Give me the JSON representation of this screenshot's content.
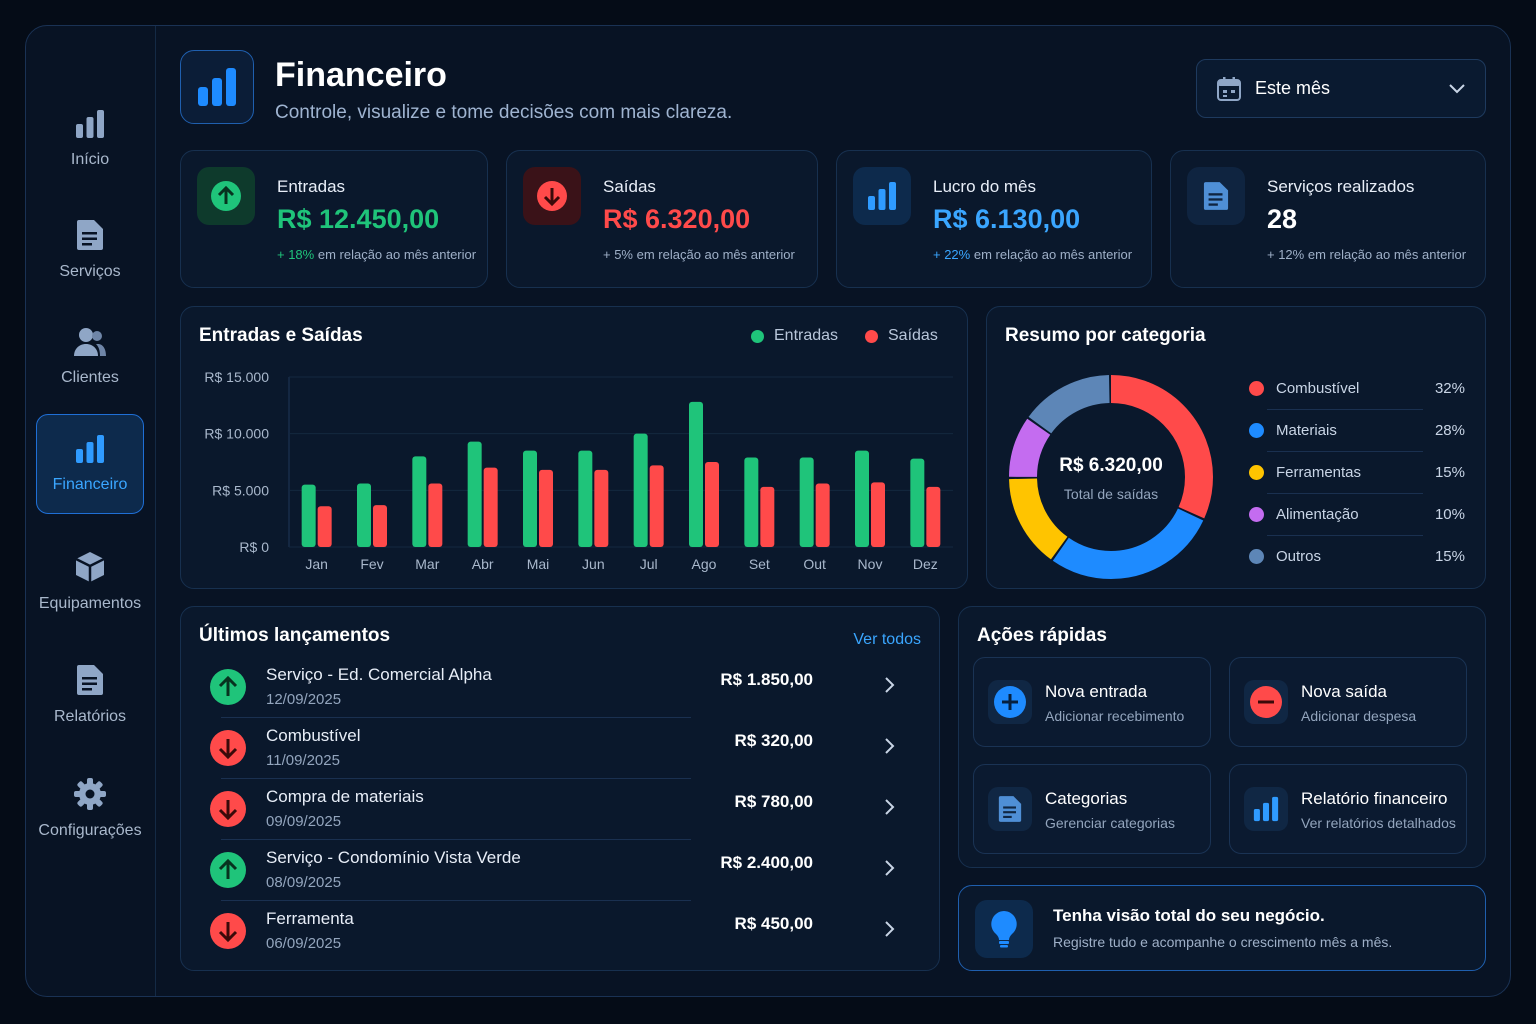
{
  "colors": {
    "accent": "#3aa6ff",
    "green": "#1fc47a",
    "red": "#ff4a4a",
    "yellow": "#ffc400",
    "purple": "#c46cf0",
    "slate": "#5d86b7"
  },
  "sidebar": {
    "items": [
      {
        "label": "Início",
        "icon": "bar-chart-icon",
        "active": false
      },
      {
        "label": "Serviços",
        "icon": "document-icon",
        "active": false
      },
      {
        "label": "Clientes",
        "icon": "users-icon",
        "active": false
      },
      {
        "label": "Financeiro",
        "icon": "bar-chart-icon",
        "active": true
      },
      {
        "label": "Equipamentos",
        "icon": "box-icon",
        "active": false
      },
      {
        "label": "Relatórios",
        "icon": "report-icon",
        "active": false
      },
      {
        "label": "Configurações",
        "icon": "gear-icon",
        "active": false
      }
    ]
  },
  "header": {
    "title": "Financeiro",
    "subtitle": "Controle, visualize e tome decisões com mais clareza.",
    "period": "Este mês"
  },
  "kpis": [
    {
      "label": "Entradas",
      "value": "R$ 12.450,00",
      "delta": "+ 18%",
      "note": " em relação ao mês anterior",
      "icon": "arrow-up-icon"
    },
    {
      "label": "Saídas",
      "value": "R$ 6.320,00",
      "delta": "+ 5%",
      "note": " em relação ao mês anterior",
      "icon": "arrow-down-icon"
    },
    {
      "label": "Lucro do mês",
      "value": "R$ 6.130,00",
      "delta": "+ 22%",
      "note": " em relação ao mês anterior",
      "icon": "bar-chart-icon"
    },
    {
      "label": "Serviços realizados",
      "value": "28",
      "delta": "+ 12%",
      "note": " em relação ao mês anterior",
      "icon": "document-icon"
    }
  ],
  "chart_data": {
    "type": "bar",
    "title": "Entradas e Saídas",
    "categories": [
      "Jan",
      "Fev",
      "Mar",
      "Abr",
      "Mai",
      "Jun",
      "Jul",
      "Ago",
      "Set",
      "Out",
      "Nov",
      "Dez"
    ],
    "series": [
      {
        "name": "Entradas",
        "values": [
          5500,
          5600,
          8000,
          9300,
          8500,
          8500,
          10000,
          12800,
          7900,
          7900,
          8500,
          7800
        ]
      },
      {
        "name": "Saídas",
        "values": [
          3600,
          3700,
          5600,
          7000,
          6800,
          6800,
          7200,
          7500,
          5300,
          5600,
          5700,
          5300
        ]
      }
    ],
    "ylim": [
      0,
      15000
    ],
    "yticks": [
      0,
      5000,
      10000,
      15000
    ],
    "ytick_labels": [
      "R$ 0",
      "R$ 5.000",
      "R$ 10.000",
      "R$ 15.000"
    ],
    "legend": "top-right",
    "grid": true
  },
  "categories": {
    "title": "Resumo por categoria",
    "center_value": "R$ 6.320,00",
    "center_label": "Total de saídas",
    "items": [
      {
        "name": "Combustível",
        "pct": "32%",
        "value": 32,
        "color": "#ff4a4a"
      },
      {
        "name": "Materiais",
        "pct": "28%",
        "value": 28,
        "color": "#1e8bff"
      },
      {
        "name": "Ferramentas",
        "pct": "15%",
        "value": 15,
        "color": "#ffc400"
      },
      {
        "name": "Alimentação",
        "pct": "10%",
        "value": 10,
        "color": "#c46cf0"
      },
      {
        "name": "Outros",
        "pct": "15%",
        "value": 15,
        "color": "#5d86b7"
      }
    ]
  },
  "transactions": {
    "title": "Últimos lançamentos",
    "view_all": "Ver todos",
    "items": [
      {
        "name": "Serviço - Ed. Comercial Alpha",
        "date": "12/09/2025",
        "amount": "R$ 1.850,00",
        "type": "in"
      },
      {
        "name": "Combustível",
        "date": "11/09/2025",
        "amount": "R$ 320,00",
        "type": "out"
      },
      {
        "name": "Compra de materiais",
        "date": "09/09/2025",
        "amount": "R$ 780,00",
        "type": "out"
      },
      {
        "name": "Serviço - Condomínio Vista Verde",
        "date": "08/09/2025",
        "amount": "R$ 2.400,00",
        "type": "in"
      },
      {
        "name": "Ferramenta",
        "date": "06/09/2025",
        "amount": "R$ 450,00",
        "type": "out"
      }
    ]
  },
  "quick_actions": {
    "title": "Ações rápidas",
    "items": [
      {
        "title": "Nova entrada",
        "subtitle": "Adicionar recebimento",
        "icon": "plus-icon"
      },
      {
        "title": "Nova saída",
        "subtitle": "Adicionar despesa",
        "icon": "minus-icon"
      },
      {
        "title": "Categorias",
        "subtitle": "Gerenciar categorias",
        "icon": "document-icon"
      },
      {
        "title": "Relatório financeiro",
        "subtitle": "Ver relatórios detalhados",
        "icon": "bar-chart-icon"
      }
    ]
  },
  "tip": {
    "title": "Tenha visão total do seu negócio.",
    "text": "Registre tudo e acompanhe o crescimento mês a mês.",
    "icon": "lightbulb-icon"
  }
}
